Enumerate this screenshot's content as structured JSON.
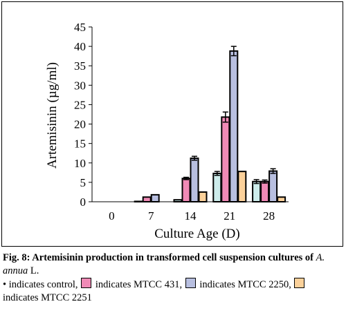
{
  "chart_data": {
    "type": "bar",
    "xlabel": "Culture Age (D)",
    "ylabel": "Artemisinin (µg/ml)",
    "categories": [
      "0",
      "7",
      "14",
      "21",
      "28"
    ],
    "ylim": [
      0,
      45
    ],
    "yticks": [
      0,
      5,
      10,
      15,
      20,
      25,
      30,
      35,
      40,
      45
    ],
    "grid": false,
    "series": [
      {
        "name": "control",
        "color": "#cdeceb",
        "values": [
          0,
          0.1,
          0.5,
          7.3,
          5.2
        ],
        "errors": [
          0,
          0,
          0,
          0.5,
          0.5
        ]
      },
      {
        "name": "MTCC 431",
        "color": "#f08ab6",
        "values": [
          0,
          1.2,
          6.0,
          21.8,
          5.2
        ],
        "errors": [
          0,
          0,
          0.3,
          1.3,
          0.4
        ]
      },
      {
        "name": "MTCC 2250",
        "color": "#b8bfe0",
        "values": [
          0,
          1.8,
          11.2,
          38.8,
          7.9
        ],
        "errors": [
          0,
          0,
          0.5,
          1.2,
          0.6
        ]
      },
      {
        "name": "MTCC 2251",
        "color": "#fbd19a",
        "values": [
          0,
          0,
          2.5,
          7.8,
          1.2
        ],
        "errors": [
          0,
          0,
          0,
          0,
          0
        ]
      }
    ]
  },
  "caption": {
    "title": "Fig. 8: Artemisinin production in transformed cell suspension cultures of",
    "species": "A. annua",
    "species_suffix": " L.",
    "bullet": "• indicates control,",
    "legend_431": " indicates MTCC 431,",
    "legend_2250": " indicates MTCC 2250,",
    "legend_2251": " indicates MTCC 2251"
  }
}
